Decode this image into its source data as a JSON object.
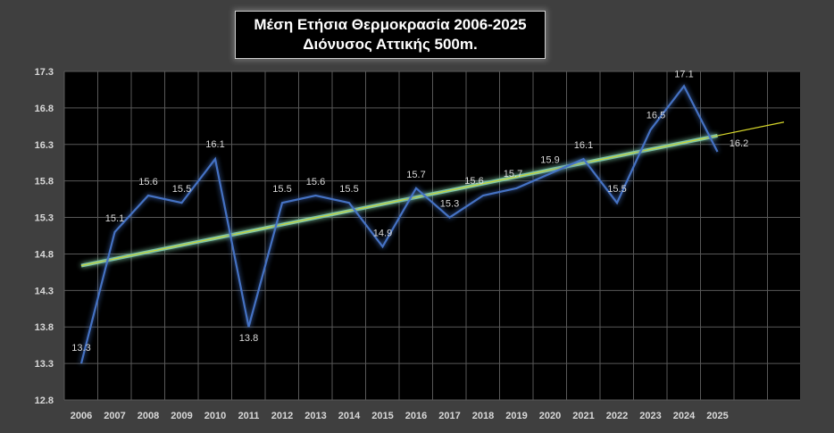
{
  "chart_data": {
    "type": "line",
    "title": "Μέση Ετήσια Θερμοκρασία 2006-2025",
    "subtitle": "Διόνυσος Αττικής 500m.",
    "categories": [
      "2006",
      "2007",
      "2008",
      "2009",
      "2010",
      "2011",
      "2012",
      "2013",
      "2014",
      "2015",
      "2016",
      "2017",
      "2018",
      "2019",
      "2020",
      "2021",
      "2022",
      "2023",
      "2024",
      "2025"
    ],
    "series": [
      {
        "values": [
          13.3,
          15.1,
          15.6,
          15.5,
          16.1,
          13.8,
          15.5,
          15.6,
          15.5,
          14.9,
          15.7,
          15.3,
          15.6,
          15.7,
          15.9,
          16.1,
          15.5,
          16.5,
          17.1,
          16.2
        ]
      }
    ],
    "data_labels": [
      "13.3",
      "15.1",
      "15.6",
      "15.5",
      "16.1",
      "13.8",
      "15.5",
      "15.6",
      "15.5",
      "14.9",
      "15.7",
      "15.3",
      "15.6",
      "15.7",
      "15.9",
      "16.1",
      "15.5",
      "16.5",
      "17.1",
      "16.2"
    ],
    "y_ticks": [
      "12.8",
      "13.3",
      "13.8",
      "14.3",
      "14.8",
      "15.3",
      "15.8",
      "16.3",
      "16.8",
      "17.3"
    ],
    "ylim": [
      12.8,
      17.3
    ],
    "trendline": {
      "type": "linear",
      "start": 14.64,
      "end_at_2025": 16.42,
      "end_extended": 16.58
    },
    "grid": true,
    "legend": "none",
    "colors": {
      "line": "#4472c4",
      "trend": "#d7d72a",
      "trend_inner": "#7fc7a6",
      "plot_bg": "#000000",
      "grid": "#585858",
      "outer_bg": "#3f3f3f",
      "text": "#d9d9d9"
    }
  }
}
